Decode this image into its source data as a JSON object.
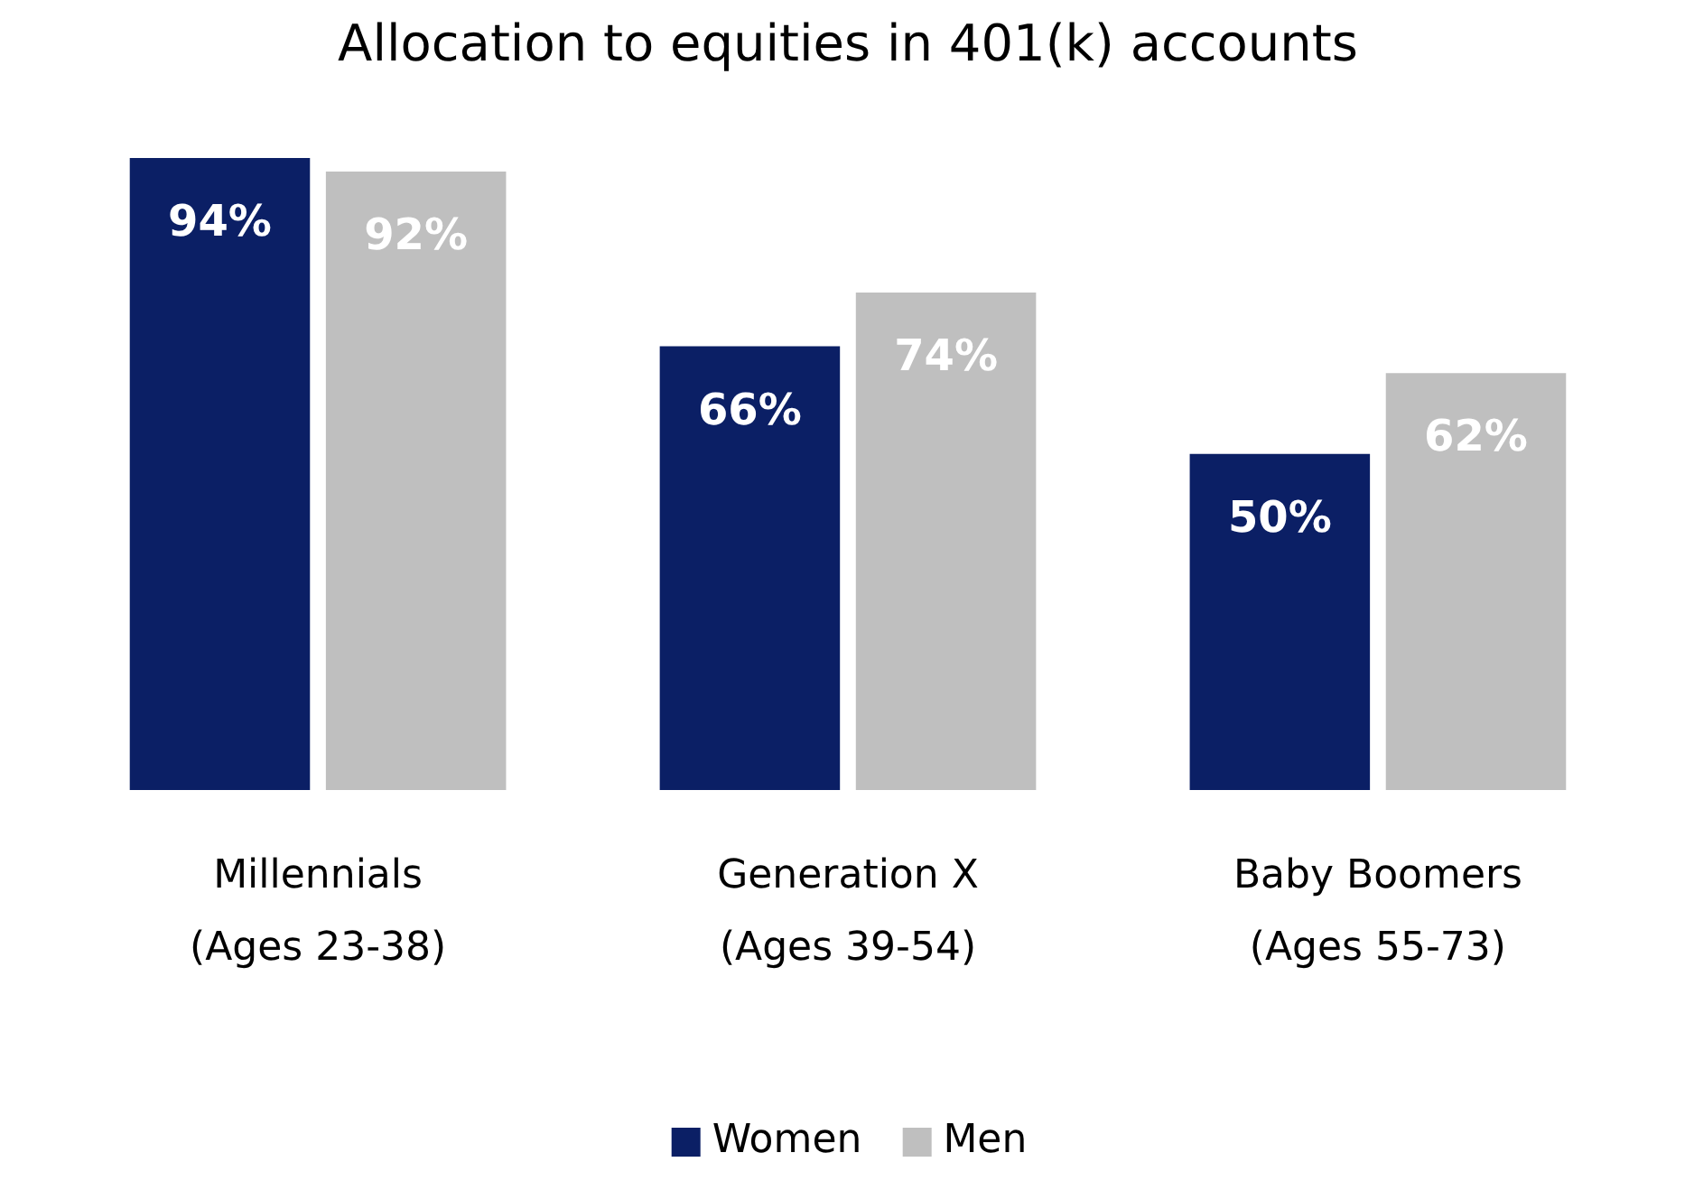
{
  "chart_data": {
    "type": "bar",
    "title": "Allocation to equities in 401(k) accounts",
    "categories": [
      "Millennials\n(Ages 23-38)",
      "Generation X\n(Ages 39-54)",
      "Baby Boomers\n(Ages 55-73)"
    ],
    "series": [
      {
        "name": "Women",
        "color": "#0b1f65",
        "values": [
          94,
          66,
          50
        ],
        "value_labels": [
          "94%",
          "66%",
          "50%"
        ]
      },
      {
        "name": "Men",
        "color": "#bfbfbf",
        "values": [
          92,
          74,
          62
        ],
        "value_labels": [
          "92%",
          "74%",
          "62%"
        ]
      }
    ],
    "legend": "bottom",
    "grid": false
  }
}
